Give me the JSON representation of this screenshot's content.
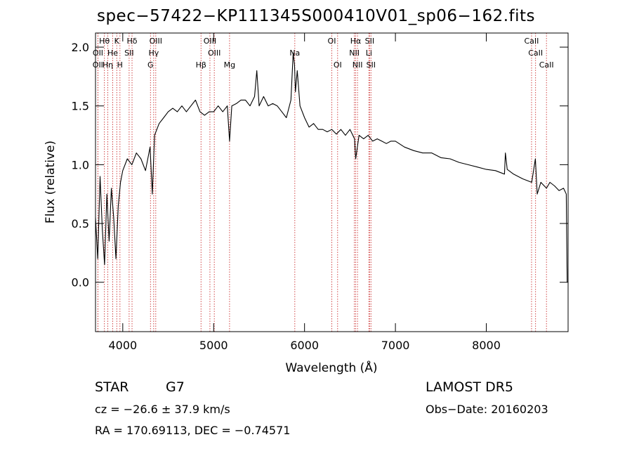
{
  "chart_data": {
    "type": "line",
    "title": "spec−57422−KP111345S000410V01_sp06−162.fits",
    "xlabel": "Wavelength (Å)",
    "ylabel": "Flux (relative)",
    "xlim": [
      3700,
      8900
    ],
    "ylim": [
      -0.42,
      2.12
    ],
    "xticks": [
      4000,
      5000,
      6000,
      7000,
      8000
    ],
    "yticks": [
      0.0,
      0.5,
      1.0,
      1.5,
      2.0
    ],
    "ytick_labels": [
      "0.0",
      "0.5",
      "1.0",
      "1.5",
      "2.0"
    ],
    "series": [
      {
        "x": [
          3700,
          3725,
          3750,
          3775,
          3800,
          3825,
          3850,
          3875,
          3900,
          3925,
          3950,
          3975,
          4000,
          4050,
          4100,
          4150,
          4200,
          4250,
          4300,
          4325,
          4350,
          4400,
          4450,
          4500,
          4550,
          4600,
          4650,
          4700,
          4750,
          4800,
          4850,
          4900,
          4950,
          5000,
          5050,
          5100,
          5150,
          5175,
          5200,
          5250,
          5300,
          5350,
          5400,
          5450,
          5475,
          5500,
          5550,
          5600,
          5650,
          5700,
          5750,
          5800,
          5850,
          5875,
          5890,
          5900,
          5920,
          5950,
          6000,
          6050,
          6100,
          6150,
          6200,
          6250,
          6300,
          6350,
          6400,
          6450,
          6500,
          6550,
          6563,
          6600,
          6650,
          6700,
          6750,
          6800,
          6850,
          6900,
          6950,
          7000,
          7100,
          7200,
          7300,
          7400,
          7500,
          7600,
          7700,
          7800,
          7900,
          8000,
          8100,
          8200,
          8210,
          8230,
          8300,
          8400,
          8500,
          8540,
          8560,
          8600,
          8662,
          8700,
          8750,
          8800,
          8850,
          8880,
          8890
        ],
        "y": [
          0.55,
          0.2,
          0.9,
          0.45,
          0.15,
          0.75,
          0.35,
          0.8,
          0.55,
          0.2,
          0.65,
          0.85,
          0.95,
          1.05,
          1.0,
          1.1,
          1.05,
          0.95,
          1.15,
          0.75,
          1.25,
          1.35,
          1.4,
          1.45,
          1.48,
          1.45,
          1.5,
          1.45,
          1.5,
          1.55,
          1.45,
          1.42,
          1.45,
          1.45,
          1.5,
          1.45,
          1.5,
          1.2,
          1.5,
          1.52,
          1.55,
          1.55,
          1.5,
          1.58,
          1.8,
          1.5,
          1.58,
          1.5,
          1.52,
          1.5,
          1.45,
          1.4,
          1.55,
          1.95,
          1.85,
          1.62,
          1.8,
          1.5,
          1.4,
          1.32,
          1.35,
          1.3,
          1.3,
          1.28,
          1.3,
          1.26,
          1.3,
          1.25,
          1.3,
          1.22,
          1.05,
          1.25,
          1.22,
          1.25,
          1.2,
          1.22,
          1.2,
          1.18,
          1.2,
          1.2,
          1.15,
          1.12,
          1.1,
          1.1,
          1.06,
          1.05,
          1.02,
          1.0,
          0.98,
          0.96,
          0.95,
          0.92,
          1.1,
          0.96,
          0.92,
          0.88,
          0.85,
          1.05,
          0.75,
          0.85,
          0.8,
          0.85,
          0.82,
          0.78,
          0.8,
          0.75,
          0.0
        ]
      }
    ],
    "lines_top": [
      {
        "label": "Hθ",
        "x": 3798,
        "row": 0
      },
      {
        "label": "K",
        "x": 3934,
        "row": 0
      },
      {
        "label": "Hδ",
        "x": 4102,
        "row": 0
      },
      {
        "label": "OIII",
        "x": 4363,
        "row": 0
      },
      {
        "label": "OIII",
        "x": 4959,
        "row": 0
      },
      {
        "label": "OI",
        "x": 6300,
        "row": 0
      },
      {
        "label": "Hα",
        "x": 6563,
        "row": 0
      },
      {
        "label": "SII",
        "x": 6716,
        "row": 0
      },
      {
        "label": "CaII",
        "x": 8498,
        "row": 0
      },
      {
        "label": "OII",
        "x": 3727,
        "row": 1
      },
      {
        "label": "He",
        "x": 3889,
        "row": 1
      },
      {
        "label": "SII",
        "x": 4070,
        "row": 1
      },
      {
        "label": "Hγ",
        "x": 4340,
        "row": 1
      },
      {
        "label": "OIII",
        "x": 5007,
        "row": 1
      },
      {
        "label": "Na",
        "x": 5893,
        "row": 1
      },
      {
        "label": "NII",
        "x": 6548,
        "row": 1
      },
      {
        "label": "Li",
        "x": 6708,
        "row": 1
      },
      {
        "label": "CaII",
        "x": 8542,
        "row": 1
      },
      {
        "label": "OII",
        "x": 3726,
        "row": 2
      },
      {
        "label": "Hη",
        "x": 3835,
        "row": 2
      },
      {
        "label": "H",
        "x": 3969,
        "row": 2
      },
      {
        "label": "G",
        "x": 4305,
        "row": 2
      },
      {
        "label": "Hβ",
        "x": 4861,
        "row": 2
      },
      {
        "label": "Mg",
        "x": 5175,
        "row": 2
      },
      {
        "label": "OI",
        "x": 6364,
        "row": 2
      },
      {
        "label": "NII",
        "x": 6583,
        "row": 2
      },
      {
        "label": "SII",
        "x": 6731,
        "row": 2
      },
      {
        "label": "CaII",
        "x": 8662,
        "row": 2
      }
    ],
    "line_color": "#000000",
    "marker_line_color": "#cc3333"
  },
  "info": {
    "object_class": "STAR",
    "subclass": "G7",
    "survey": "LAMOST DR5",
    "cz": "cz = −26.6 ± 37.9 km/s",
    "obs_date": "Obs−Date: 20160203",
    "radec": "RA = 170.69113, DEC =  −0.74571"
  }
}
